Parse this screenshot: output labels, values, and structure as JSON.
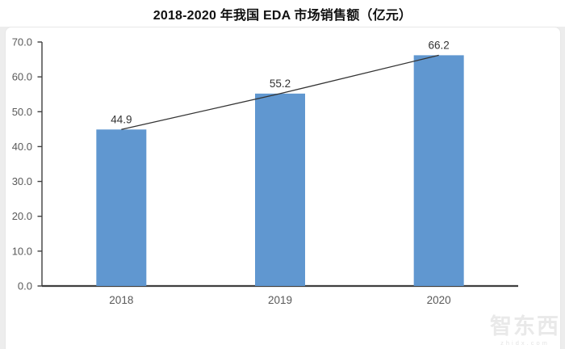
{
  "chart_data": {
    "type": "bar",
    "title": "2018-2020 年我国 EDA 市场销售额（亿元）",
    "categories": [
      "2018",
      "2019",
      "2020"
    ],
    "values": [
      44.9,
      55.2,
      66.2
    ],
    "data_labels": [
      "44.9",
      "55.2",
      "66.2"
    ],
    "xlabel": "",
    "ylabel": "",
    "ylim": [
      0,
      70
    ],
    "ytick_step": 10,
    "ytick_labels": [
      "0.0",
      "10.0",
      "20.0",
      "30.0",
      "40.0",
      "50.0",
      "60.0",
      "70.0"
    ],
    "grid": false,
    "legend": "none",
    "trendline": "straight line connecting bar tops",
    "colors": {
      "bar": "#6097d0",
      "trendline": "#333333",
      "axis": "#3f3f3f",
      "tick_labels": "#595959",
      "data_labels": "#333333",
      "title": "#111111"
    }
  },
  "watermark": {
    "logo_text": "智东西",
    "site_text": "zhidx.com"
  }
}
